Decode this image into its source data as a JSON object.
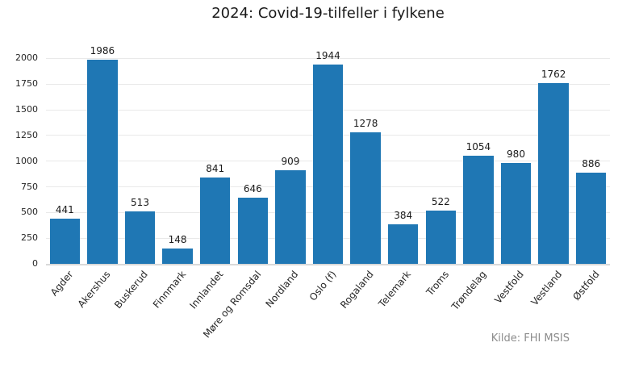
{
  "title": "2024: Covid-19-tilfeller i fylkene",
  "source_note": "Kilde: FHI MSIS",
  "colors": {
    "bar": "#1f77b4",
    "grid": "#e9e9e9",
    "axis_line": "#d9d9d9",
    "title_text": "#1a1a1a",
    "tick_text": "#262626",
    "value_label_text": "#1a1a1a",
    "source_text": "#8c8c8c",
    "background": "#ffffff"
  },
  "chart_data": {
    "type": "bar",
    "title": "2024: Covid-19-tilfeller i fylkene",
    "categories": [
      "Agder",
      "Akershus",
      "Buskerud",
      "Finnmark",
      "Innlandet",
      "Møre og Romsdal",
      "Nordland",
      "Oslo (f)",
      "Rogaland",
      "Telemark",
      "Troms",
      "Trøndelag",
      "Vestfold",
      "Vestland",
      "Østfold"
    ],
    "values": [
      441,
      1986,
      513,
      148,
      841,
      646,
      909,
      1944,
      1278,
      384,
      522,
      1054,
      980,
      1762,
      886
    ],
    "xlabel": "",
    "ylabel": "",
    "ylim": [
      0,
      2090
    ],
    "yticks": [
      0,
      250,
      500,
      750,
      1000,
      1250,
      1500,
      1750,
      2000
    ],
    "grid": "horizontal",
    "legend": "none",
    "value_labels": true,
    "xtick_rotation_deg": 50,
    "annotations": [
      "Kilde: FHI MSIS"
    ]
  }
}
